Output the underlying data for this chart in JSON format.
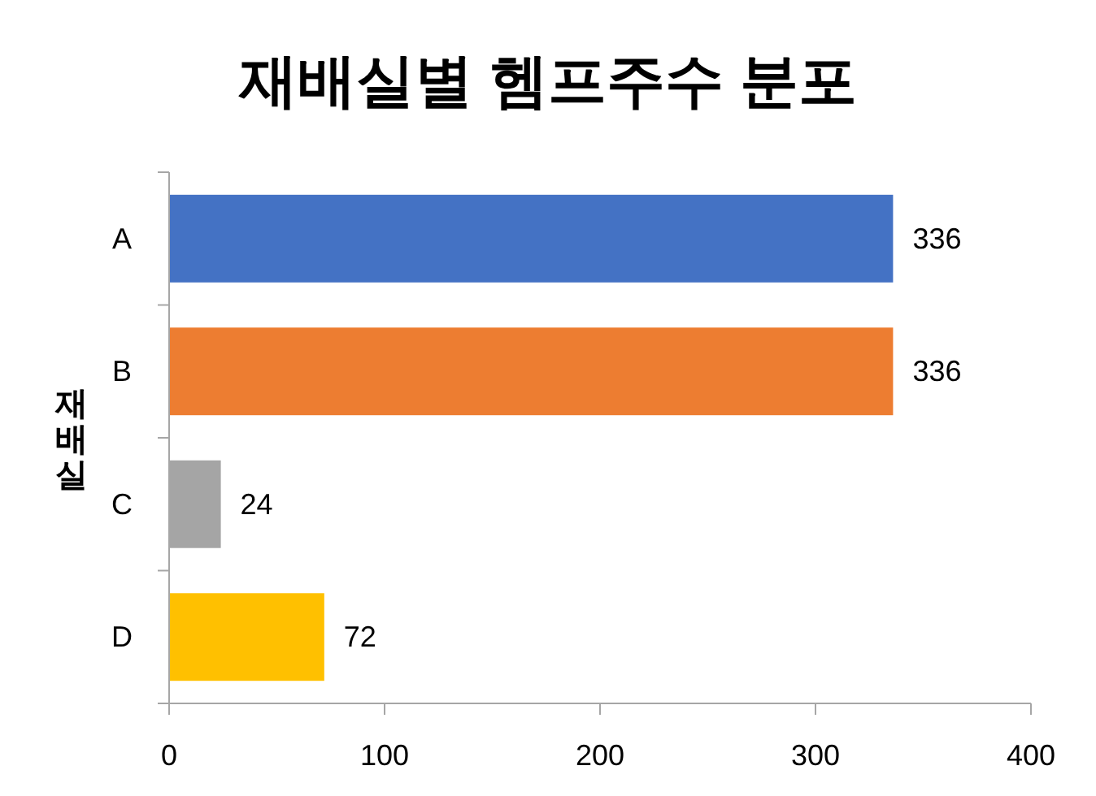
{
  "chart_data": {
    "type": "bar",
    "orientation": "horizontal",
    "title": "재배실별 헴프주수 분포",
    "ylabel": "재배실",
    "categories": [
      "A",
      "B",
      "C",
      "D"
    ],
    "values": [
      336,
      336,
      24,
      72
    ],
    "colors": [
      "#4472c4",
      "#ed7d31",
      "#a5a5a5",
      "#ffc000"
    ],
    "xlim": [
      0,
      400
    ],
    "xticks": [
      0,
      100,
      200,
      300,
      400
    ],
    "grid": false,
    "data_labels": true
  }
}
